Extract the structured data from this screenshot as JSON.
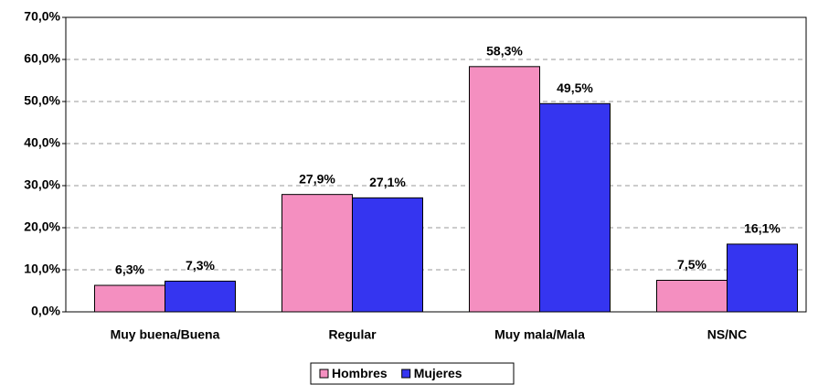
{
  "chart_data": {
    "type": "bar",
    "categories": [
      "Muy buena/Buena",
      "Regular",
      "Muy mala/Mala",
      "NS/NC"
    ],
    "series": [
      {
        "name": "Hombres",
        "color": "#f48fc0",
        "values": [
          6.3,
          27.9,
          58.3,
          7.5
        ],
        "value_labels": [
          "6,3%",
          "27,9%",
          "58,3%",
          "7,5%"
        ]
      },
      {
        "name": "Mujeres",
        "color": "#3535f0",
        "values": [
          7.3,
          27.1,
          49.5,
          16.1
        ],
        "value_labels": [
          "7,3%",
          "27,1%",
          "49,5%",
          "16,1%"
        ]
      }
    ],
    "ylim": [
      0,
      70
    ],
    "yticks": [
      {
        "value": 0,
        "label": "0,0%"
      },
      {
        "value": 10,
        "label": "10,0%"
      },
      {
        "value": 20,
        "label": "20,0%"
      },
      {
        "value": 30,
        "label": "30,0%"
      },
      {
        "value": 40,
        "label": "40,0%"
      },
      {
        "value": 50,
        "label": "50,0%"
      },
      {
        "value": 60,
        "label": "60,0%"
      },
      {
        "value": 70,
        "label": "70,0%"
      }
    ],
    "grid": true,
    "legend": "bottom"
  }
}
